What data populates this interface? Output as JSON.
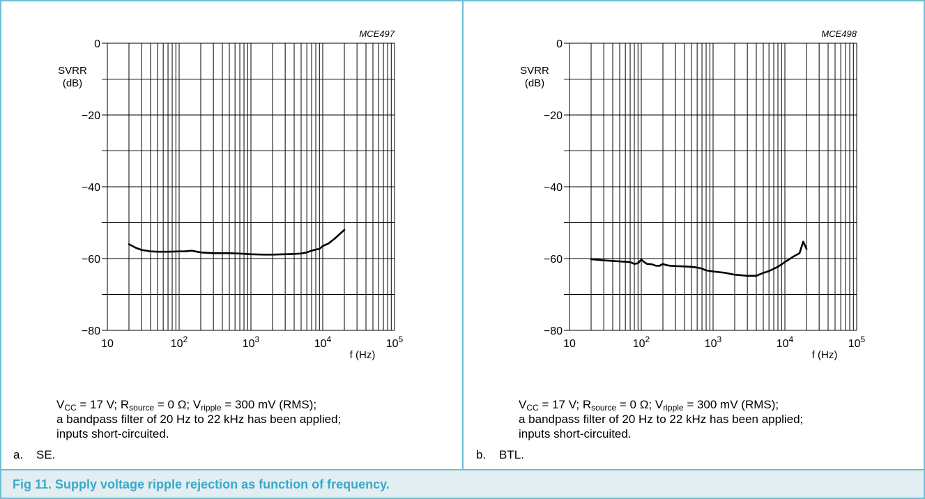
{
  "figure": {
    "caption": "Fig 11. Supply voltage ripple rejection as function of frequency.",
    "accent_color": "#38a9c9",
    "border_color": "#6bbfd2",
    "caption_background": "#e3eef2"
  },
  "panels": [
    {
      "label_letter": "a.",
      "label_text": "SE.",
      "notes": {
        "line1": {
          "v_cc": "V",
          "v_cc_sub": "CC",
          "v_cc_val": " = 17 V; ",
          "r_source": "R",
          "r_source_sub": "source",
          "r_source_val": " = 0 Ω; ",
          "v_ripple": "V",
          "v_ripple_sub": "ripple",
          "v_ripple_val": " = 300 mV (RMS);"
        },
        "line2": "a bandpass filter of 20 Hz to 22 kHz has been applied;",
        "line3": "inputs short-circuited."
      }
    },
    {
      "label_letter": "b.",
      "label_text": "BTL.",
      "notes": {
        "line1": {
          "v_cc": "V",
          "v_cc_sub": "CC",
          "v_cc_val": " = 17 V; ",
          "r_source": "R",
          "r_source_sub": "source",
          "r_source_val": " = 0 Ω; ",
          "v_ripple": "V",
          "v_ripple_sub": "ripple",
          "v_ripple_val": " = 300 mV (RMS);"
        },
        "line2": "a bandpass filter of 20 Hz to 22 kHz has been applied;",
        "line3": "inputs short-circuited."
      }
    }
  ],
  "chart_data": [
    {
      "type": "line",
      "id": "MCE497",
      "ylabel_line1": "SVRR",
      "ylabel_line2": "(dB)",
      "xlabel": "f (Hz)",
      "x_scale": "log",
      "xlim": [
        10,
        100000
      ],
      "ylim": [
        -80,
        0
      ],
      "x_ticks": [
        {
          "base": "10",
          "exp": ""
        },
        {
          "base": "10",
          "exp": "2"
        },
        {
          "base": "10",
          "exp": "3"
        },
        {
          "base": "10",
          "exp": "4"
        },
        {
          "base": "10",
          "exp": "5"
        }
      ],
      "y_ticks": [
        {
          "value": 0,
          "label": "0"
        },
        {
          "value": -20,
          "label": "−20"
        },
        {
          "value": -40,
          "label": "−40"
        },
        {
          "value": -60,
          "label": "−60"
        },
        {
          "value": -80,
          "label": "−80"
        }
      ],
      "grid": true,
      "series": [
        {
          "x": [
            20,
            25,
            30,
            40,
            50,
            70,
            100,
            120,
            150,
            200,
            300,
            500,
            700,
            1000,
            1500,
            2000,
            3000,
            4000,
            5000,
            6000,
            7000,
            8000,
            9000,
            10000,
            12000,
            15000,
            20000
          ],
          "y": [
            -56,
            -57,
            -57.6,
            -58,
            -58.1,
            -58.1,
            -58,
            -58,
            -57.8,
            -58.3,
            -58.5,
            -58.5,
            -58.6,
            -58.8,
            -58.9,
            -58.9,
            -58.8,
            -58.7,
            -58.6,
            -58.3,
            -57.8,
            -57.5,
            -57.3,
            -56.5,
            -55.8,
            -54.3,
            -52
          ]
        }
      ]
    },
    {
      "type": "line",
      "id": "MCE498",
      "ylabel_line1": "SVRR",
      "ylabel_line2": "(dB)",
      "xlabel": "f (Hz)",
      "x_scale": "log",
      "xlim": [
        10,
        100000
      ],
      "ylim": [
        -80,
        0
      ],
      "x_ticks": [
        {
          "base": "10",
          "exp": ""
        },
        {
          "base": "10",
          "exp": "2"
        },
        {
          "base": "10",
          "exp": "3"
        },
        {
          "base": "10",
          "exp": "4"
        },
        {
          "base": "10",
          "exp": "5"
        }
      ],
      "y_ticks": [
        {
          "value": 0,
          "label": "0"
        },
        {
          "value": -20,
          "label": "−20"
        },
        {
          "value": -40,
          "label": "−40"
        },
        {
          "value": -60,
          "label": "−60"
        },
        {
          "value": -80,
          "label": "−80"
        }
      ],
      "grid": true,
      "series": [
        {
          "x": [
            20,
            30,
            50,
            70,
            80,
            90,
            100,
            110,
            120,
            140,
            160,
            180,
            200,
            220,
            250,
            300,
            400,
            500,
            600,
            700,
            800,
            1000,
            1500,
            2000,
            3000,
            4000,
            5000,
            6000,
            8000,
            10000,
            13000,
            16000,
            18000,
            20000
          ],
          "y": [
            -60.2,
            -60.5,
            -60.8,
            -61,
            -61.5,
            -61.3,
            -60.3,
            -61,
            -61.5,
            -61.6,
            -62,
            -62,
            -61.5,
            -61.8,
            -62,
            -62.1,
            -62.2,
            -62.3,
            -62.5,
            -62.8,
            -63.3,
            -63.6,
            -64,
            -64.5,
            -64.8,
            -64.8,
            -64,
            -63.5,
            -62.3,
            -61,
            -59.5,
            -58.5,
            -55.3,
            -57.3
          ]
        }
      ]
    }
  ]
}
